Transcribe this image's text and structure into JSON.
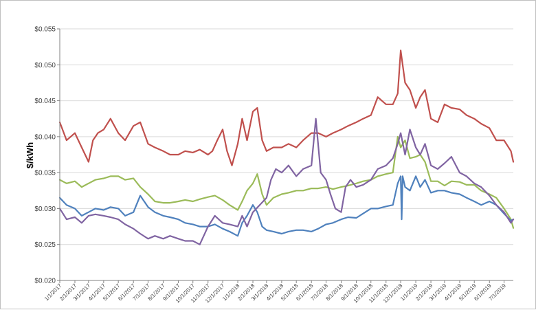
{
  "chart_data": {
    "type": "line",
    "title": "",
    "xlabel": "",
    "ylabel": "$/kWh",
    "ylim": [
      0.02,
      0.055
    ],
    "ytick_labels": [
      "$0.020",
      "$0.025",
      "$0.030",
      "$0.035",
      "$0.040",
      "$0.045",
      "$0.050",
      "$0.055"
    ],
    "ytick_values": [
      0.02,
      0.025,
      0.03,
      0.035,
      0.04,
      0.045,
      0.05,
      0.055
    ],
    "x_range": [
      "1/1/2017",
      "7/20/2019"
    ],
    "xtick_labels": [
      "1/1/2017",
      "2/1/2017",
      "3/1/2017",
      "4/1/2017",
      "5/1/2017",
      "6/1/2017",
      "7/1/2017",
      "8/1/2017",
      "9/1/2017",
      "10/1/2017",
      "11/1/2017",
      "12/1/2017",
      "1/1/2018",
      "2/1/2018",
      "3/1/2018",
      "4/1/2018",
      "5/1/2018",
      "6/1/2018",
      "7/1/2018",
      "8/1/2018",
      "9/1/2018",
      "10/1/2018",
      "11/1/2018",
      "12/1/2018",
      "1/1/2019",
      "2/1/2019",
      "3/1/2019",
      "4/1/2019",
      "5/1/2019",
      "6/1/2019",
      "7/1/2019"
    ],
    "grid": "horizontal",
    "series": [
      {
        "color": "#c0504d",
        "x": [
          "1/1/2017",
          "1/15/2017",
          "2/1/2017",
          "2/15/2017",
          "3/1/2017",
          "3/10/2017",
          "3/20/2017",
          "4/1/2017",
          "4/15/2017",
          "5/1/2017",
          "5/15/2017",
          "6/1/2017",
          "6/15/2017",
          "7/1/2017",
          "7/15/2017",
          "8/1/2017",
          "8/15/2017",
          "9/1/2017",
          "9/15/2017",
          "10/1/2017",
          "10/15/2017",
          "11/1/2017",
          "11/10/2017",
          "11/20/2017",
          "12/1/2017",
          "12/10/2017",
          "12/20/2017",
          "1/1/2018",
          "1/10/2018",
          "1/20/2018",
          "2/1/2018",
          "2/10/2018",
          "2/20/2018",
          "3/1/2018",
          "3/15/2018",
          "4/1/2018",
          "4/15/2018",
          "5/1/2018",
          "5/15/2018",
          "6/1/2018",
          "6/15/2018",
          "7/1/2018",
          "7/15/2018",
          "8/1/2018",
          "8/15/2018",
          "9/1/2018",
          "9/15/2018",
          "10/1/2018",
          "10/15/2018",
          "11/1/2018",
          "11/15/2018",
          "11/25/2018",
          "12/1/2018",
          "12/10/2018",
          "12/20/2018",
          "1/1/2019",
          "1/10/2019",
          "1/20/2019",
          "2/1/2019",
          "2/15/2019",
          "3/1/2019",
          "3/15/2019",
          "4/1/2019",
          "4/15/2019",
          "5/1/2019",
          "5/15/2019",
          "6/1/2019",
          "6/15/2019",
          "7/1/2019",
          "7/15/2019",
          "7/20/2019"
        ],
        "values": [
          0.042,
          0.0395,
          0.0405,
          0.0385,
          0.0365,
          0.0395,
          0.0405,
          0.041,
          0.0425,
          0.0405,
          0.0395,
          0.0415,
          0.042,
          0.039,
          0.0385,
          0.038,
          0.0375,
          0.0375,
          0.038,
          0.0378,
          0.0382,
          0.0375,
          0.038,
          0.0395,
          0.041,
          0.038,
          0.036,
          0.039,
          0.0425,
          0.0395,
          0.0435,
          0.044,
          0.0395,
          0.038,
          0.0385,
          0.0385,
          0.039,
          0.0385,
          0.0395,
          0.0405,
          0.0405,
          0.04,
          0.0405,
          0.041,
          0.0415,
          0.042,
          0.0425,
          0.043,
          0.0455,
          0.0445,
          0.0445,
          0.046,
          0.052,
          0.0475,
          0.0465,
          0.044,
          0.0455,
          0.0465,
          0.0425,
          0.042,
          0.0445,
          0.044,
          0.0438,
          0.043,
          0.0425,
          0.0418,
          0.0412,
          0.0395,
          0.0395,
          0.038,
          0.0365
        ]
      },
      {
        "color": "#9bbb59",
        "x": [
          "1/1/2017",
          "1/15/2017",
          "2/1/2017",
          "2/15/2017",
          "3/1/2017",
          "3/15/2017",
          "4/1/2017",
          "4/15/2017",
          "5/1/2017",
          "5/15/2017",
          "6/1/2017",
          "6/15/2017",
          "7/1/2017",
          "7/15/2017",
          "8/1/2017",
          "8/15/2017",
          "9/1/2017",
          "9/15/2017",
          "10/1/2017",
          "10/15/2017",
          "11/1/2017",
          "11/15/2017",
          "12/1/2017",
          "12/15/2017",
          "1/1/2018",
          "1/10/2018",
          "1/20/2018",
          "2/1/2018",
          "2/10/2018",
          "2/20/2018",
          "3/1/2018",
          "3/15/2018",
          "4/1/2018",
          "4/15/2018",
          "5/1/2018",
          "5/15/2018",
          "6/1/2018",
          "6/15/2018",
          "7/1/2018",
          "7/15/2018",
          "8/1/2018",
          "8/15/2018",
          "9/1/2018",
          "9/15/2018",
          "10/1/2018",
          "10/15/2018",
          "11/1/2018",
          "11/15/2018",
          "11/25/2018",
          "12/1/2018",
          "12/10/2018",
          "12/20/2018",
          "1/1/2019",
          "1/10/2019",
          "1/20/2019",
          "2/1/2019",
          "2/15/2019",
          "3/1/2019",
          "3/15/2019",
          "4/1/2019",
          "4/15/2019",
          "5/1/2019",
          "5/15/2019",
          "6/1/2019",
          "6/15/2019",
          "7/1/2019",
          "7/15/2019",
          "7/20/2019"
        ],
        "values": [
          0.034,
          0.0335,
          0.0338,
          0.033,
          0.0335,
          0.034,
          0.0342,
          0.0345,
          0.0345,
          0.034,
          0.0342,
          0.033,
          0.032,
          0.031,
          0.0308,
          0.0308,
          0.031,
          0.0312,
          0.031,
          0.0313,
          0.0316,
          0.0318,
          0.0312,
          0.0305,
          0.0298,
          0.031,
          0.0325,
          0.0335,
          0.0348,
          0.032,
          0.0305,
          0.0315,
          0.032,
          0.0322,
          0.0325,
          0.0325,
          0.0328,
          0.0328,
          0.033,
          0.0327,
          0.033,
          0.0332,
          0.0335,
          0.0338,
          0.034,
          0.0345,
          0.0348,
          0.035,
          0.04,
          0.0385,
          0.0395,
          0.037,
          0.0372,
          0.0375,
          0.0365,
          0.0338,
          0.0338,
          0.0332,
          0.0338,
          0.0337,
          0.0333,
          0.0333,
          0.0325,
          0.032,
          0.0315,
          0.03,
          0.0285,
          0.0273
        ]
      },
      {
        "color": "#4f81bd",
        "x": [
          "1/1/2017",
          "1/15/2017",
          "2/1/2017",
          "2/15/2017",
          "3/1/2017",
          "3/15/2017",
          "4/1/2017",
          "4/15/2017",
          "5/1/2017",
          "5/15/2017",
          "6/1/2017",
          "6/15/2017",
          "7/1/2017",
          "7/15/2017",
          "8/1/2017",
          "8/15/2017",
          "9/1/2017",
          "9/15/2017",
          "10/1/2017",
          "10/15/2017",
          "11/1/2017",
          "11/15/2017",
          "12/1/2017",
          "12/15/2017",
          "1/1/2018",
          "1/10/2018",
          "1/20/2018",
          "2/1/2018",
          "2/10/2018",
          "2/20/2018",
          "3/1/2018",
          "3/15/2018",
          "4/1/2018",
          "4/15/2018",
          "5/1/2018",
          "5/15/2018",
          "6/1/2018",
          "6/15/2018",
          "7/1/2018",
          "7/15/2018",
          "8/1/2018",
          "8/15/2018",
          "9/1/2018",
          "9/15/2018",
          "10/1/2018",
          "10/15/2018",
          "11/1/2018",
          "11/15/2018",
          "11/25/2018",
          "12/1/2018",
          "12/3/2018",
          "12/5/2018",
          "12/10/2018",
          "12/20/2018",
          "1/1/2019",
          "1/10/2019",
          "1/20/2019",
          "2/1/2019",
          "2/15/2019",
          "3/1/2019",
          "3/15/2019",
          "4/1/2019",
          "4/15/2019",
          "5/1/2019",
          "5/15/2019",
          "6/1/2019",
          "6/15/2019",
          "7/1/2019",
          "7/15/2019",
          "7/20/2019"
        ],
        "values": [
          0.0315,
          0.0305,
          0.03,
          0.029,
          0.0295,
          0.03,
          0.0298,
          0.0302,
          0.03,
          0.029,
          0.0295,
          0.0318,
          0.0302,
          0.0295,
          0.029,
          0.0288,
          0.0285,
          0.028,
          0.0278,
          0.0275,
          0.0275,
          0.0278,
          0.0272,
          0.0268,
          0.0262,
          0.028,
          0.029,
          0.0305,
          0.0295,
          0.0275,
          0.027,
          0.0268,
          0.0265,
          0.0268,
          0.027,
          0.027,
          0.0268,
          0.0272,
          0.0278,
          0.028,
          0.0285,
          0.0288,
          0.0287,
          0.0293,
          0.03,
          0.03,
          0.0303,
          0.0305,
          0.0335,
          0.0345,
          0.0285,
          0.0345,
          0.033,
          0.0325,
          0.0345,
          0.033,
          0.034,
          0.0322,
          0.0325,
          0.0325,
          0.0322,
          0.032,
          0.0315,
          0.031,
          0.0305,
          0.031,
          0.0305,
          0.0293,
          0.0283,
          0.0285
        ]
      },
      {
        "color": "#8064a2",
        "x": [
          "1/1/2017",
          "1/15/2017",
          "2/1/2017",
          "2/15/2017",
          "3/1/2017",
          "3/15/2017",
          "4/1/2017",
          "4/15/2017",
          "5/1/2017",
          "5/15/2017",
          "6/1/2017",
          "6/15/2017",
          "7/1/2017",
          "7/15/2017",
          "8/1/2017",
          "8/15/2017",
          "9/1/2017",
          "9/15/2017",
          "10/1/2017",
          "10/15/2017",
          "11/1/2017",
          "11/15/2017",
          "12/1/2017",
          "12/15/2017",
          "1/1/2018",
          "1/10/2018",
          "1/20/2018",
          "2/1/2018",
          "2/15/2018",
          "3/1/2018",
          "3/10/2018",
          "3/20/2018",
          "4/1/2018",
          "4/15/2018",
          "5/1/2018",
          "5/15/2018",
          "6/1/2018",
          "6/10/2018",
          "6/20/2018",
          "7/1/2018",
          "7/10/2018",
          "7/20/2018",
          "8/1/2018",
          "8/10/2018",
          "8/20/2018",
          "9/1/2018",
          "9/15/2018",
          "10/1/2018",
          "10/15/2018",
          "11/1/2018",
          "11/15/2018",
          "11/25/2018",
          "12/1/2018",
          "12/10/2018",
          "12/20/2018",
          "1/1/2019",
          "1/10/2019",
          "1/20/2019",
          "2/1/2019",
          "2/15/2019",
          "3/1/2019",
          "3/15/2019",
          "4/1/2019",
          "4/15/2019",
          "5/1/2019",
          "5/15/2019",
          "6/1/2019",
          "6/15/2019",
          "7/1/2019",
          "7/15/2019",
          "7/20/2019"
        ],
        "values": [
          0.03,
          0.0285,
          0.0288,
          0.028,
          0.029,
          0.0292,
          0.029,
          0.0288,
          0.0285,
          0.0278,
          0.0272,
          0.0265,
          0.0258,
          0.0262,
          0.0258,
          0.0262,
          0.0258,
          0.0255,
          0.0255,
          0.025,
          0.0275,
          0.029,
          0.028,
          0.0278,
          0.0275,
          0.029,
          0.0275,
          0.0295,
          0.0305,
          0.0315,
          0.034,
          0.0355,
          0.035,
          0.036,
          0.0345,
          0.0355,
          0.036,
          0.0425,
          0.035,
          0.034,
          0.032,
          0.03,
          0.0295,
          0.033,
          0.034,
          0.033,
          0.0333,
          0.034,
          0.0355,
          0.036,
          0.037,
          0.039,
          0.0405,
          0.0375,
          0.041,
          0.0385,
          0.0375,
          0.039,
          0.036,
          0.0355,
          0.0363,
          0.0372,
          0.035,
          0.0345,
          0.0335,
          0.033,
          0.0318,
          0.0305,
          0.0295,
          0.028,
          0.0285
        ]
      }
    ]
  }
}
